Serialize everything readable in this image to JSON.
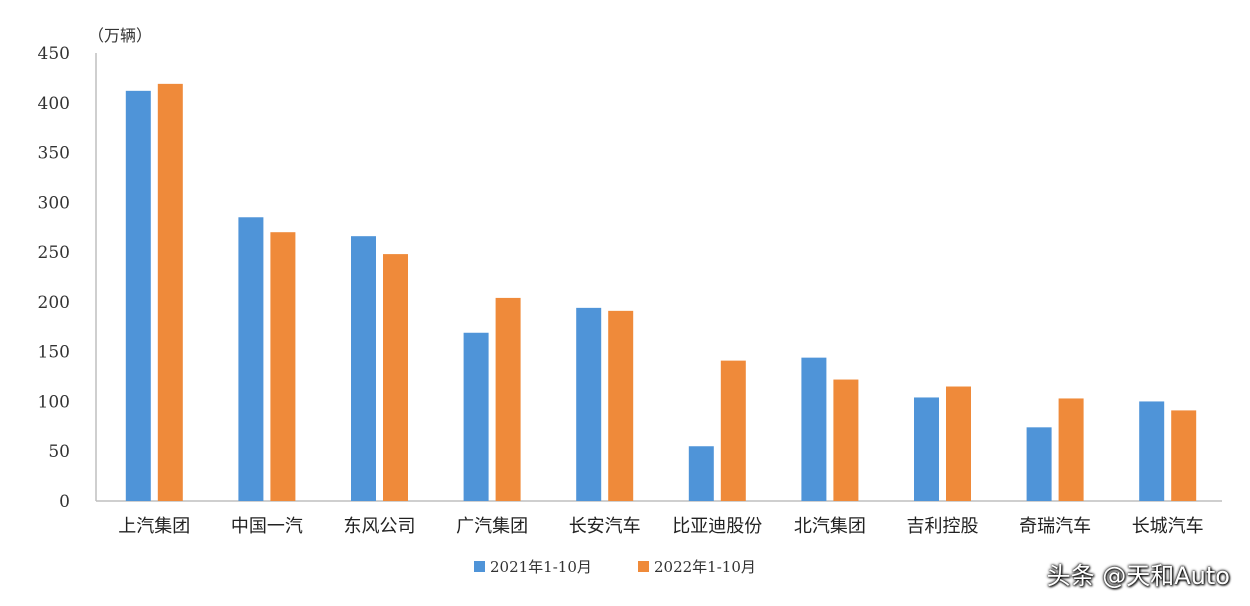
{
  "chart_data": {
    "type": "bar",
    "unit_label": "（万辆）",
    "categories": [
      "上汽集团",
      "中国一汽",
      "东风公司",
      "广汽集团",
      "长安汽车",
      "比亚迪股份",
      "北汽集团",
      "吉利控股",
      "奇瑞汽车",
      "长城汽车"
    ],
    "series": [
      {
        "name": "2021年1-10月",
        "color": "#4f94d8",
        "values": [
          412,
          285,
          266,
          169,
          194,
          55,
          144,
          104,
          74,
          100
        ]
      },
      {
        "name": "2022年1-10月",
        "color": "#ef8a3a",
        "values": [
          419,
          270,
          248,
          204,
          191,
          141,
          122,
          115,
          103,
          91
        ]
      }
    ],
    "ylim": [
      0,
      450
    ],
    "yticks": [
      0,
      50,
      100,
      150,
      200,
      250,
      300,
      350,
      400,
      450
    ],
    "grid": false,
    "legend_position": "bottom"
  },
  "watermark": "头条 @天和Auto"
}
